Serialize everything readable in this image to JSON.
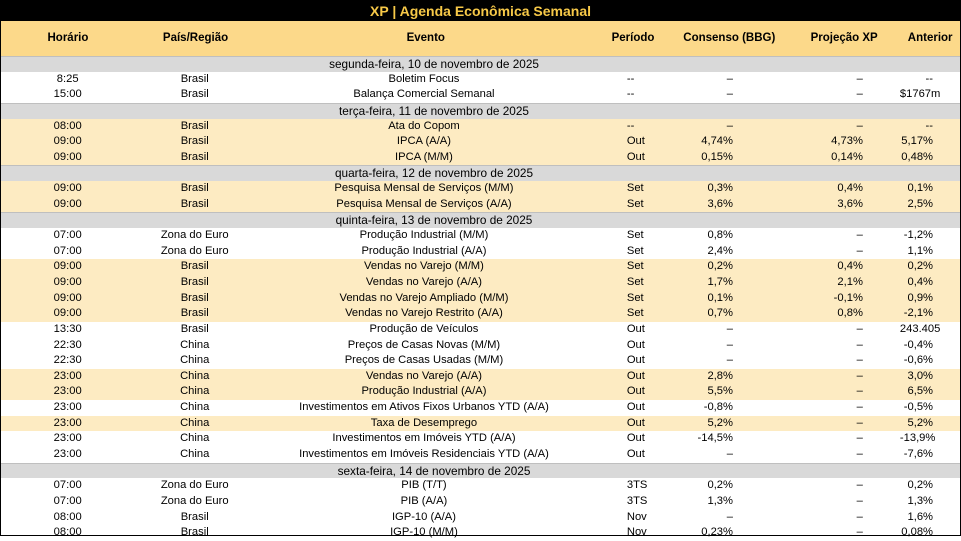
{
  "title": "XP | Agenda Econômica Semanal",
  "headers": {
    "horario": "Horário",
    "pais": "País/Região",
    "evento": "Evento",
    "periodo": "Período",
    "consenso": "Consenso (BBG)",
    "projecao": "Projeção XP",
    "anterior": "Anterior"
  },
  "days": [
    {
      "label": "segunda-feira, 10 de novembro de 2025",
      "rows": [
        {
          "hora": "8:25",
          "pais": "Brasil",
          "evento": "Boletim Focus",
          "periodo": "--",
          "consenso": "–",
          "projecao": "–",
          "anterior": "--",
          "hl": false
        },
        {
          "hora": "15:00",
          "pais": "Brasil",
          "evento": "Balança Comercial Semanal",
          "periodo": "--",
          "consenso": "–",
          "projecao": "–",
          "anterior": "$1767m",
          "hl": false
        }
      ]
    },
    {
      "label": "terça-feira, 11 de novembro de 2025",
      "rows": [
        {
          "hora": "08:00",
          "pais": "Brasil",
          "evento": "Ata do Copom",
          "periodo": "--",
          "consenso": "–",
          "projecao": "–",
          "anterior": "--",
          "hl": true
        },
        {
          "hora": "09:00",
          "pais": "Brasil",
          "evento": "IPCA (A/A)",
          "periodo": "Out",
          "consenso": "4,74%",
          "projecao": "4,73%",
          "anterior": "5,17%",
          "hl": true
        },
        {
          "hora": "09:00",
          "pais": "Brasil",
          "evento": "IPCA (M/M)",
          "periodo": "Out",
          "consenso": "0,15%",
          "projecao": "0,14%",
          "anterior": "0,48%",
          "hl": true
        }
      ]
    },
    {
      "label": "quarta-feira, 12 de novembro de 2025",
      "rows": [
        {
          "hora": "09:00",
          "pais": "Brasil",
          "evento": "Pesquisa Mensal de Serviços (M/M)",
          "periodo": "Set",
          "consenso": "0,3%",
          "projecao": "0,4%",
          "anterior": "0,1%",
          "hl": true
        },
        {
          "hora": "09:00",
          "pais": "Brasil",
          "evento": "Pesquisa Mensal de Serviços (A/A)",
          "periodo": "Set",
          "consenso": "3,6%",
          "projecao": "3,6%",
          "anterior": "2,5%",
          "hl": true
        }
      ]
    },
    {
      "label": "quinta-feira, 13 de novembro de 2025",
      "rows": [
        {
          "hora": "07:00",
          "pais": "Zona do Euro",
          "evento": "Produção Industrial (M/M)",
          "periodo": "Set",
          "consenso": "0,8%",
          "projecao": "–",
          "anterior": "-1,2%",
          "hl": false
        },
        {
          "hora": "07:00",
          "pais": "Zona do Euro",
          "evento": "Produção Industrial (A/A)",
          "periodo": "Set",
          "consenso": "2,4%",
          "projecao": "–",
          "anterior": "1,1%",
          "hl": false
        },
        {
          "hora": "09:00",
          "pais": "Brasil",
          "evento": "Vendas no Varejo (M/M)",
          "periodo": "Set",
          "consenso": "0,2%",
          "projecao": "0,4%",
          "anterior": "0,2%",
          "hl": true
        },
        {
          "hora": "09:00",
          "pais": "Brasil",
          "evento": "Vendas no Varejo (A/A)",
          "periodo": "Set",
          "consenso": "1,7%",
          "projecao": "2,1%",
          "anterior": "0,4%",
          "hl": true
        },
        {
          "hora": "09:00",
          "pais": "Brasil",
          "evento": "Vendas no Varejo Ampliado (M/M)",
          "periodo": "Set",
          "consenso": "0,1%",
          "projecao": "-0,1%",
          "anterior": "0,9%",
          "hl": true
        },
        {
          "hora": "09:00",
          "pais": "Brasil",
          "evento": "Vendas no Varejo Restrito (A/A)",
          "periodo": "Set",
          "consenso": "0,7%",
          "projecao": "0,8%",
          "anterior": "-2,1%",
          "hl": true
        },
        {
          "hora": "13:30",
          "pais": "Brasil",
          "evento": "Produção de Veículos",
          "periodo": "Out",
          "consenso": "–",
          "projecao": "–",
          "anterior": "243.405",
          "hl": false
        },
        {
          "hora": "22:30",
          "pais": "China",
          "evento": "Preços de Casas Novas (M/M)",
          "periodo": "Out",
          "consenso": "–",
          "projecao": "–",
          "anterior": "-0,4%",
          "hl": false
        },
        {
          "hora": "22:30",
          "pais": "China",
          "evento": "Preços de Casas Usadas (M/M)",
          "periodo": "Out",
          "consenso": "–",
          "projecao": "–",
          "anterior": "-0,6%",
          "hl": false
        },
        {
          "hora": "23:00",
          "pais": "China",
          "evento": "Vendas no Varejo (A/A)",
          "periodo": "Out",
          "consenso": "2,8%",
          "projecao": "–",
          "anterior": "3,0%",
          "hl": true
        },
        {
          "hora": "23:00",
          "pais": "China",
          "evento": "Produção Industrial (A/A)",
          "periodo": "Out",
          "consenso": "5,5%",
          "projecao": "–",
          "anterior": "6,5%",
          "hl": true
        },
        {
          "hora": "23:00",
          "pais": "China",
          "evento": "Investimentos em Ativos Fixos Urbanos YTD (A/A)",
          "periodo": "Out",
          "consenso": "-0,8%",
          "projecao": "–",
          "anterior": "-0,5%",
          "hl": false
        },
        {
          "hora": "23:00",
          "pais": "China",
          "evento": "Taxa de Desemprego",
          "periodo": "Out",
          "consenso": "5,2%",
          "projecao": "–",
          "anterior": "5,2%",
          "hl": true
        },
        {
          "hora": "23:00",
          "pais": "China",
          "evento": "Investimentos em Imóveis YTD (A/A)",
          "periodo": "Out",
          "consenso": "-14,5%",
          "projecao": "–",
          "anterior": "-13,9%",
          "hl": false
        },
        {
          "hora": "23:00",
          "pais": "China",
          "evento": "Investimentos em Imóveis Residenciais YTD (A/A)",
          "periodo": "Out",
          "consenso": "–",
          "projecao": "–",
          "anterior": "-7,6%",
          "hl": false
        }
      ]
    },
    {
      "label": "sexta-feira, 14 de novembro de 2025",
      "rows": [
        {
          "hora": "07:00",
          "pais": "Zona do Euro",
          "evento": "PIB (T/T)",
          "periodo": "3TS",
          "consenso": "0,2%",
          "projecao": "–",
          "anterior": "0,2%",
          "hl": false
        },
        {
          "hora": "07:00",
          "pais": "Zona do Euro",
          "evento": "PIB (A/A)",
          "periodo": "3TS",
          "consenso": "1,3%",
          "projecao": "–",
          "anterior": "1,3%",
          "hl": false
        },
        {
          "hora": "08:00",
          "pais": "Brasil",
          "evento": "IGP-10 (A/A)",
          "periodo": "Nov",
          "consenso": "–",
          "projecao": "–",
          "anterior": "1,6%",
          "hl": false
        },
        {
          "hora": "08:00",
          "pais": "Brasil",
          "evento": "IGP-10 (M/M)",
          "periodo": "Nov",
          "consenso": "0,23%",
          "projecao": "–",
          "anterior": "0,08%",
          "hl": false
        }
      ]
    }
  ]
}
